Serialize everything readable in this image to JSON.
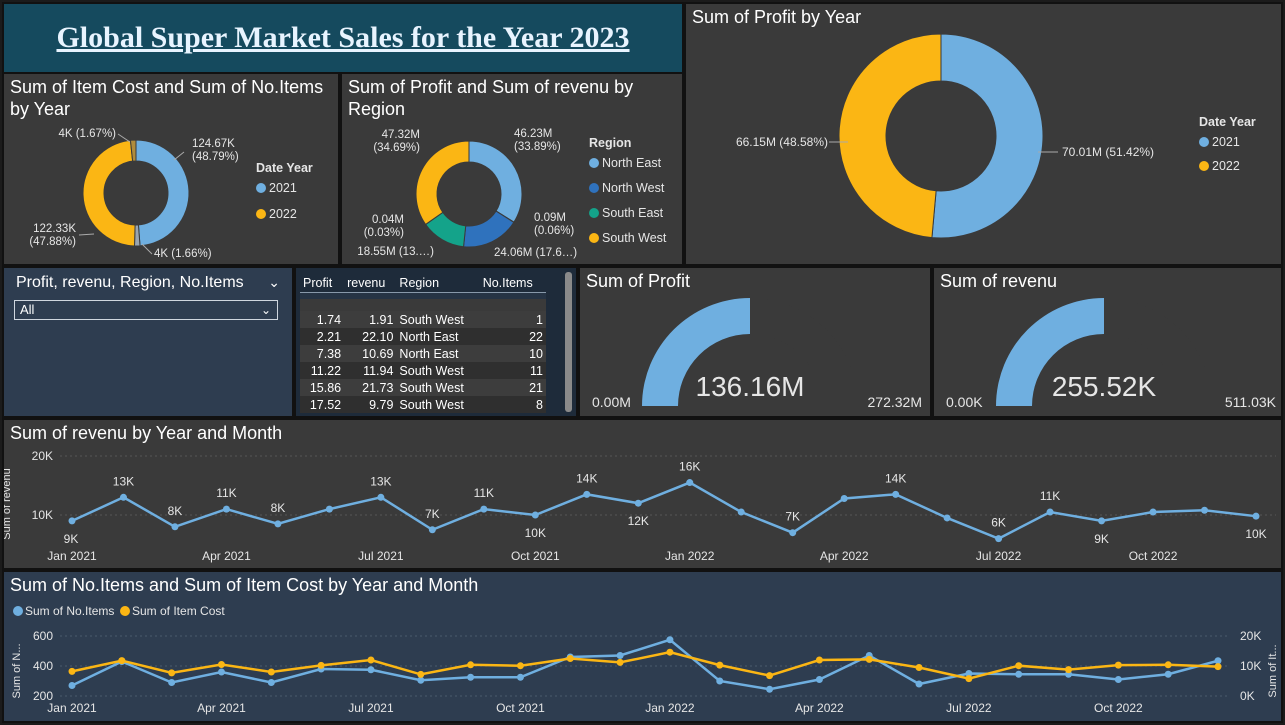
{
  "banner": {
    "title": "Global Super Market Sales for the Year 2023"
  },
  "colors": {
    "y2021": "#6fafe0",
    "y2022": "#fbb614",
    "ne": "#6fafe0",
    "nw": "#2f72bd",
    "se": "#14a38a",
    "sw": "#fbb614",
    "panel": "#3a3a3a",
    "navy": "#2e3d50"
  },
  "donut_items": {
    "title": "Sum of Item Cost and Sum of No.Items by Year",
    "legend_title": "Date Year",
    "legend": [
      "2021",
      "2022"
    ],
    "labels": [
      "124.67K\n(48.79%)",
      "4K (1.66%)",
      "122.33K\n(47.88%)",
      "4K (1.67%)"
    ],
    "chart_data": {
      "type": "pie",
      "slices": [
        124.67,
        4.24,
        122.33,
        4.27
      ]
    }
  },
  "donut_region": {
    "title": "Sum of Profit and Sum of revenu by Region",
    "legend_title": "Region",
    "legend": [
      "North East",
      "North West",
      "South East",
      "South West"
    ],
    "labels": [
      "46.23M\n(33.89%)",
      "0.09M\n(0.06%)",
      "24.06M (17.6…)",
      "18.55M (13.…)",
      "0.04M\n(0.03%)",
      "47.32M\n(34.69%)"
    ],
    "chart_data": {
      "type": "pie",
      "slices": [
        46.23,
        0.09,
        24.06,
        18.55,
        0.04,
        47.32
      ]
    }
  },
  "donut_profit": {
    "title": "Sum of Profit by Year",
    "legend_title": "Date Year",
    "legend": [
      "2021",
      "2022"
    ],
    "labels": [
      "70.01M (51.42%)",
      "66.15M (48.58%)"
    ],
    "chart_data": {
      "type": "pie",
      "slices": [
        70.01,
        66.15
      ]
    }
  },
  "slicer": {
    "title": "Profit, revenu, Region, No.Items",
    "value": "All"
  },
  "table": {
    "headers": [
      "Profit",
      "revenu",
      "Region",
      "No.Items"
    ],
    "rows": [
      [
        "1.74",
        "1.91",
        "South West",
        "1"
      ],
      [
        "2.21",
        "22.10",
        "North East",
        "22"
      ],
      [
        "7.38",
        "10.69",
        "North East",
        "10"
      ],
      [
        "11.22",
        "11.94",
        "South West",
        "11"
      ],
      [
        "15.86",
        "21.73",
        "South West",
        "21"
      ],
      [
        "17.52",
        "9.79",
        "South West",
        "8"
      ]
    ]
  },
  "gauge_profit": {
    "title": "Sum of Profit",
    "value": "136.16M",
    "min": "0.00M",
    "max": "272.32M",
    "fraction": 0.5
  },
  "gauge_revenu": {
    "title": "Sum of revenu",
    "value": "255.52K",
    "min": "0.00K",
    "max": "511.03K",
    "fraction": 0.5
  },
  "line_revenu": {
    "title": "Sum of revenu by Year and Month",
    "ylabel": "Sum of revenu",
    "yticks": [
      "20K",
      "10K"
    ],
    "xticks": [
      "Jan 2021",
      "Apr 2021",
      "Jul 2021",
      "Oct 2021",
      "Jan 2022",
      "Apr 2022",
      "Jul 2022",
      "Oct 2022"
    ],
    "point_labels": [
      "9K",
      "13K",
      "8K",
      "11K",
      "8K",
      "",
      "13K",
      "7K",
      "11K",
      "10K",
      "14K",
      "12K",
      "16K",
      "",
      "7K",
      "",
      "14K",
      "",
      "6K",
      "11K",
      "9K",
      "",
      "",
      "10K"
    ],
    "chart_data": {
      "type": "line",
      "ylim": [
        0,
        20000
      ],
      "values": [
        9000,
        13000,
        8000,
        11000,
        8500,
        11000,
        13000,
        7500,
        11000,
        10000,
        13500,
        12000,
        15500,
        10500,
        7000,
        12800,
        13500,
        9500,
        6000,
        10500,
        9000,
        10500,
        10800,
        9800
      ]
    }
  },
  "combo": {
    "title": "Sum of No.Items and Sum of Item Cost by Year and Month",
    "legend": [
      "Sum of No.Items",
      "Sum of Item Cost"
    ],
    "ylabel_left": "Sum of N...",
    "ylabel_right": "Sum of It...",
    "yticks_left": [
      "600",
      "400",
      "200"
    ],
    "yticks_right": [
      "20K",
      "10K",
      "0K"
    ],
    "xticks": [
      "Jan 2021",
      "Apr 2021",
      "Jul 2021",
      "Oct 2021",
      "Jan 2022",
      "Apr 2022",
      "Jul 2022",
      "Oct 2022"
    ],
    "chart_data": {
      "type": "line",
      "series": [
        {
          "name": "Sum of No.Items",
          "axis": "left",
          "ylim": [
            200,
            600
          ],
          "values": [
            270,
            430,
            290,
            360,
            290,
            380,
            375,
            305,
            325,
            325,
            460,
            470,
            575,
            300,
            245,
            310,
            470,
            280,
            350,
            345,
            345,
            310,
            345,
            435
          ]
        },
        {
          "name": "Sum of Item Cost",
          "axis": "right",
          "ylim": [
            0,
            20000
          ],
          "values": [
            8200,
            11800,
            7700,
            10500,
            8000,
            10200,
            12000,
            7200,
            10400,
            10100,
            12500,
            11200,
            14600,
            10300,
            6800,
            12000,
            12200,
            9500,
            5800,
            10100,
            8800,
            10300,
            10400,
            9800
          ]
        }
      ]
    }
  }
}
